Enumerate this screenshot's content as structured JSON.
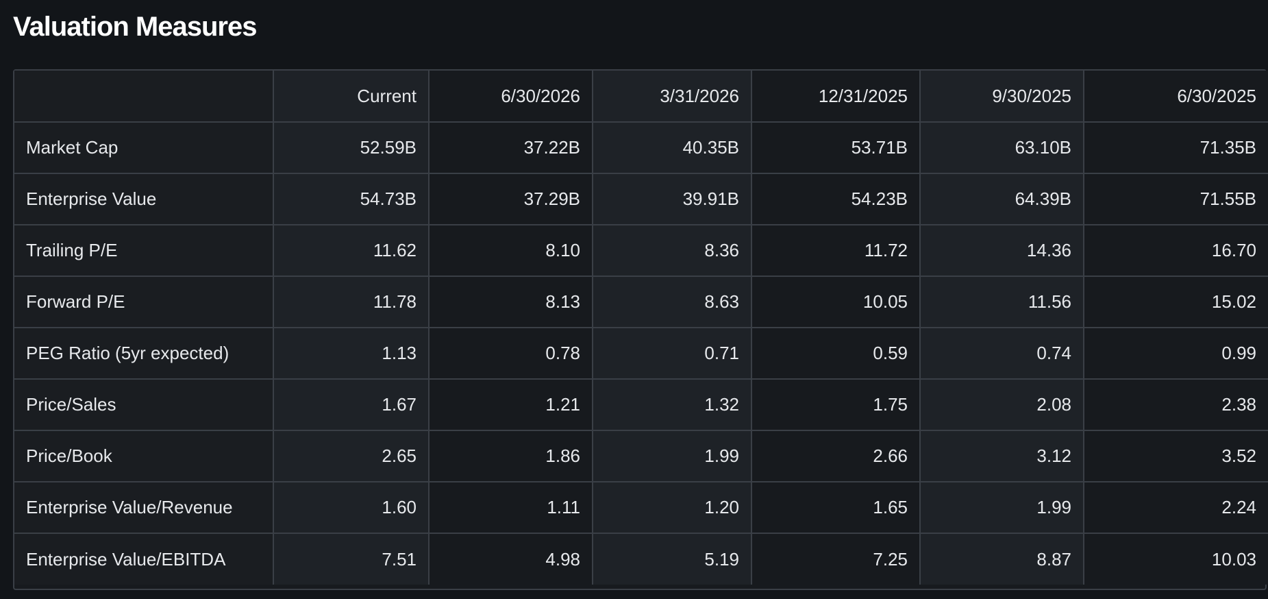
{
  "title": "Valuation Measures",
  "table": {
    "headers": [
      "",
      "Current",
      "6/30/2026",
      "3/31/2026",
      "12/31/2025",
      "9/30/2025",
      "6/30/2025"
    ],
    "rows": [
      [
        "Market Cap",
        "52.59B",
        "37.22B",
        "40.35B",
        "53.71B",
        "63.10B",
        "71.35B"
      ],
      [
        "Enterprise Value",
        "54.73B",
        "37.29B",
        "39.91B",
        "54.23B",
        "64.39B",
        "71.55B"
      ],
      [
        "Trailing P/E",
        "11.62",
        "8.10",
        "8.36",
        "11.72",
        "14.36",
        "16.70"
      ],
      [
        "Forward P/E",
        "11.78",
        "8.13",
        "8.63",
        "10.05",
        "11.56",
        "15.02"
      ],
      [
        "PEG Ratio (5yr expected)",
        "1.13",
        "0.78",
        "0.71",
        "0.59",
        "0.74",
        "0.99"
      ],
      [
        "Price/Sales",
        "1.67",
        "1.21",
        "1.32",
        "1.75",
        "2.08",
        "2.38"
      ],
      [
        "Price/Book",
        "2.65",
        "1.86",
        "1.99",
        "2.66",
        "3.12",
        "3.52"
      ],
      [
        "Enterprise Value/Revenue",
        "1.60",
        "1.11",
        "1.20",
        "1.65",
        "1.99",
        "2.24"
      ],
      [
        "Enterprise Value/EBITDA",
        "7.51",
        "4.98",
        "5.19",
        "7.25",
        "8.87",
        "10.03"
      ]
    ]
  },
  "colors": {
    "background": "#121519",
    "border": "#3a3f46",
    "text": "#e7e9ec"
  }
}
